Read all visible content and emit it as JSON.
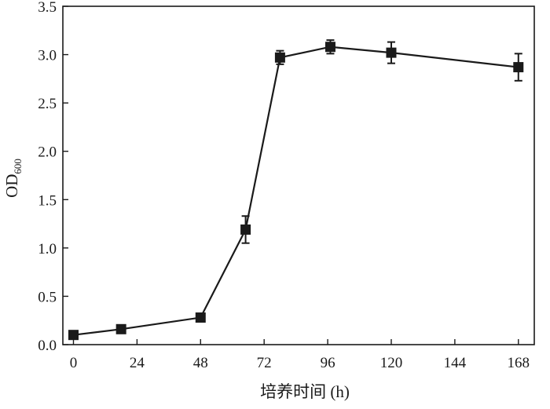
{
  "chart_data": {
    "type": "line",
    "xlabel": "培养时间 (h)",
    "ylabel": {
      "main": "OD",
      "subscript": "600"
    },
    "xlim": [
      -4,
      174
    ],
    "ylim": [
      0,
      3.5
    ],
    "xticks": [
      0,
      24,
      48,
      72,
      96,
      120,
      144,
      168
    ],
    "yticks": [
      0.0,
      0.5,
      1.0,
      1.5,
      2.0,
      2.5,
      3.0,
      3.5
    ],
    "ytick_labels": [
      "0.0",
      "0.5",
      "1.0",
      "1.5",
      "2.0",
      "2.5",
      "3.0",
      "3.5"
    ],
    "grid": false,
    "legend": false,
    "marker": "square",
    "color": "#1a1a1a",
    "series": [
      {
        "x": [
          0,
          18,
          48,
          65,
          78,
          97,
          120,
          168
        ],
        "y": [
          0.1,
          0.16,
          0.28,
          1.19,
          2.97,
          3.08,
          3.02,
          2.87
        ],
        "error": [
          0.02,
          0.02,
          0.04,
          0.14,
          0.07,
          0.07,
          0.11,
          0.14
        ]
      }
    ]
  }
}
